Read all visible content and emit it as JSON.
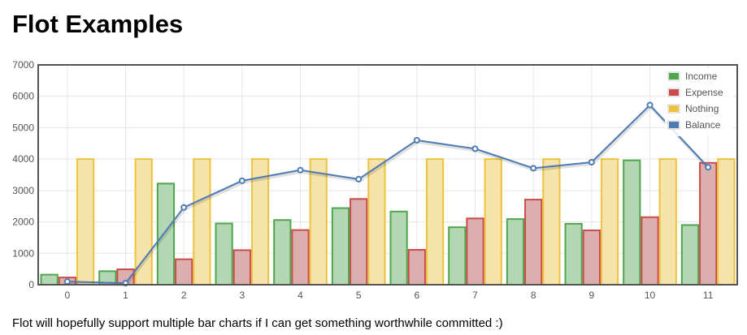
{
  "page": {
    "title": "Flot Examples",
    "footnote": "Flot will hopefully support multiple bar charts if I can get something worthwhile committed :)"
  },
  "chart_data": {
    "type": "bar",
    "x": [
      0,
      1,
      2,
      3,
      4,
      5,
      6,
      7,
      8,
      9,
      10,
      11
    ],
    "xlim": [
      -0.5,
      11.5
    ],
    "ylim": [
      0,
      7000
    ],
    "yticks": [
      0,
      1000,
      2000,
      3000,
      4000,
      5000,
      6000,
      7000
    ],
    "grid": true,
    "legend_position": "top-right",
    "series": [
      {
        "name": "Income",
        "kind": "bar",
        "color": "#4da74d",
        "fill": "#b3d6b3",
        "values": [
          320,
          430,
          3220,
          1950,
          2060,
          2440,
          2330,
          1830,
          2090,
          1940,
          3960,
          1900
        ]
      },
      {
        "name": "Expense",
        "kind": "bar",
        "color": "#cb4b4b",
        "fill": "#dcafaf",
        "values": [
          230,
          490,
          810,
          1100,
          1740,
          2730,
          1110,
          2110,
          2710,
          1730,
          2150,
          3880
        ]
      },
      {
        "name": "Nothing",
        "kind": "bar",
        "color": "#edc240",
        "fill": "#f6e3aa",
        "values": [
          4000,
          4000,
          4000,
          4000,
          4000,
          4000,
          4000,
          4000,
          4000,
          4000,
          4000,
          4000
        ]
      },
      {
        "name": "Balance",
        "kind": "line",
        "color": "#4e7ab4",
        "values": [
          100,
          50,
          2460,
          3310,
          3650,
          3360,
          4600,
          4330,
          3710,
          3900,
          5720,
          3740
        ]
      }
    ]
  }
}
